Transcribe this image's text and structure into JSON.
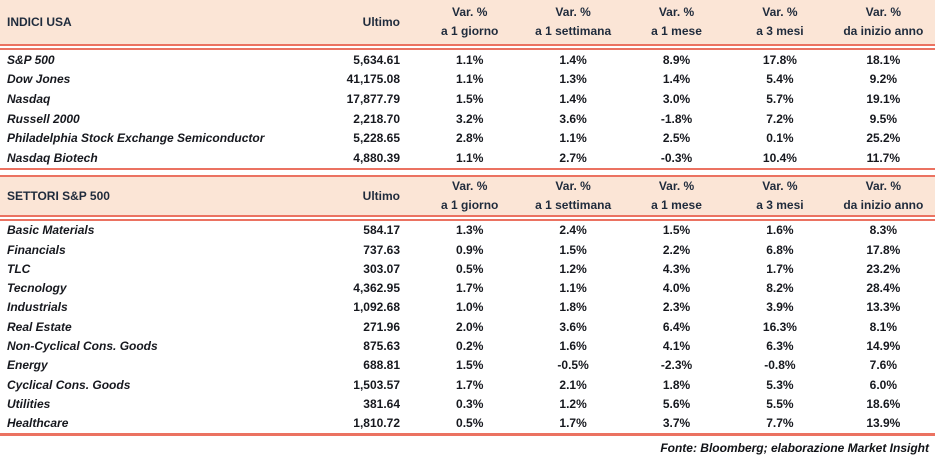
{
  "colors": {
    "header_bg": "#FBE5D6",
    "accent_line": "#EB7261",
    "header_text": "#1F2B3C"
  },
  "tables": [
    {
      "title": "INDICI USA",
      "ultimo_header": "Ultimo",
      "pct_headers": [
        {
          "l1": "Var. %",
          "l2": "a 1 giorno"
        },
        {
          "l1": "Var. %",
          "l2": "a 1 settimana"
        },
        {
          "l1": "Var. %",
          "l2": "a 1 mese"
        },
        {
          "l1": "Var. %",
          "l2": "a 3 mesi"
        },
        {
          "l1": "Var. %",
          "l2": "da inizio anno"
        }
      ],
      "rows": [
        {
          "label": "S&P 500",
          "ultimo": "5,634.61",
          "pcts": [
            "1.1%",
            "1.4%",
            "8.9%",
            "17.8%",
            "18.1%"
          ]
        },
        {
          "label": "Dow Jones",
          "ultimo": "41,175.08",
          "pcts": [
            "1.1%",
            "1.3%",
            "1.4%",
            "5.4%",
            "9.2%"
          ]
        },
        {
          "label": "Nasdaq",
          "ultimo": "17,877.79",
          "pcts": [
            "1.5%",
            "1.4%",
            "3.0%",
            "5.7%",
            "19.1%"
          ]
        },
        {
          "label": "Russell 2000",
          "ultimo": "2,218.70",
          "pcts": [
            "3.2%",
            "3.6%",
            "-1.8%",
            "7.2%",
            "9.5%"
          ]
        },
        {
          "label": "Philadelphia Stock Exchange Semiconductor",
          "ultimo": "5,228.65",
          "pcts": [
            "2.8%",
            "1.1%",
            "2.5%",
            "0.1%",
            "25.2%"
          ]
        },
        {
          "label": "Nasdaq Biotech",
          "ultimo": "4,880.39",
          "pcts": [
            "1.1%",
            "2.7%",
            "-0.3%",
            "10.4%",
            "11.7%"
          ]
        }
      ]
    },
    {
      "title": "SETTORI S&P 500",
      "ultimo_header": "Ultimo",
      "pct_headers": [
        {
          "l1": "Var. %",
          "l2": "a 1 giorno"
        },
        {
          "l1": "Var. %",
          "l2": "a 1 settimana"
        },
        {
          "l1": "Var. %",
          "l2": "a 1 mese"
        },
        {
          "l1": "Var. %",
          "l2": "a 3 mesi"
        },
        {
          "l1": "Var. %",
          "l2": "da inizio anno"
        }
      ],
      "rows": [
        {
          "label": "Basic Materials",
          "ultimo": "584.17",
          "pcts": [
            "1.3%",
            "2.4%",
            "1.5%",
            "1.6%",
            "8.3%"
          ]
        },
        {
          "label": "Financials",
          "ultimo": "737.63",
          "pcts": [
            "0.9%",
            "1.5%",
            "2.2%",
            "6.8%",
            "17.8%"
          ]
        },
        {
          "label": "TLC",
          "ultimo": "303.07",
          "pcts": [
            "0.5%",
            "1.2%",
            "4.3%",
            "1.7%",
            "23.2%"
          ]
        },
        {
          "label": "Tecnology",
          "ultimo": "4,362.95",
          "pcts": [
            "1.7%",
            "1.1%",
            "4.0%",
            "8.2%",
            "28.4%"
          ]
        },
        {
          "label": "Industrials",
          "ultimo": "1,092.68",
          "pcts": [
            "1.0%",
            "1.8%",
            "2.3%",
            "3.9%",
            "13.3%"
          ]
        },
        {
          "label": "Real Estate",
          "ultimo": "271.96",
          "pcts": [
            "2.0%",
            "3.6%",
            "6.4%",
            "16.3%",
            "8.1%"
          ]
        },
        {
          "label": "Non-Cyclical Cons. Goods",
          "ultimo": "875.63",
          "pcts": [
            "0.2%",
            "1.6%",
            "4.1%",
            "6.3%",
            "14.9%"
          ]
        },
        {
          "label": "Energy",
          "ultimo": "688.81",
          "pcts": [
            "1.5%",
            "-0.5%",
            "-2.3%",
            "-0.8%",
            "7.6%"
          ]
        },
        {
          "label": "Cyclical Cons. Goods",
          "ultimo": "1,503.57",
          "pcts": [
            "1.7%",
            "2.1%",
            "1.8%",
            "5.3%",
            "6.0%"
          ]
        },
        {
          "label": "Utilities",
          "ultimo": "381.64",
          "pcts": [
            "0.3%",
            "1.2%",
            "5.6%",
            "5.5%",
            "18.6%"
          ]
        },
        {
          "label": "Healthcare",
          "ultimo": "1,810.72",
          "pcts": [
            "0.5%",
            "1.7%",
            "3.7%",
            "7.7%",
            "13.9%"
          ]
        }
      ]
    }
  ],
  "footer": {
    "source": "Fonte: Bloomberg; elaborazione Market Insight"
  }
}
